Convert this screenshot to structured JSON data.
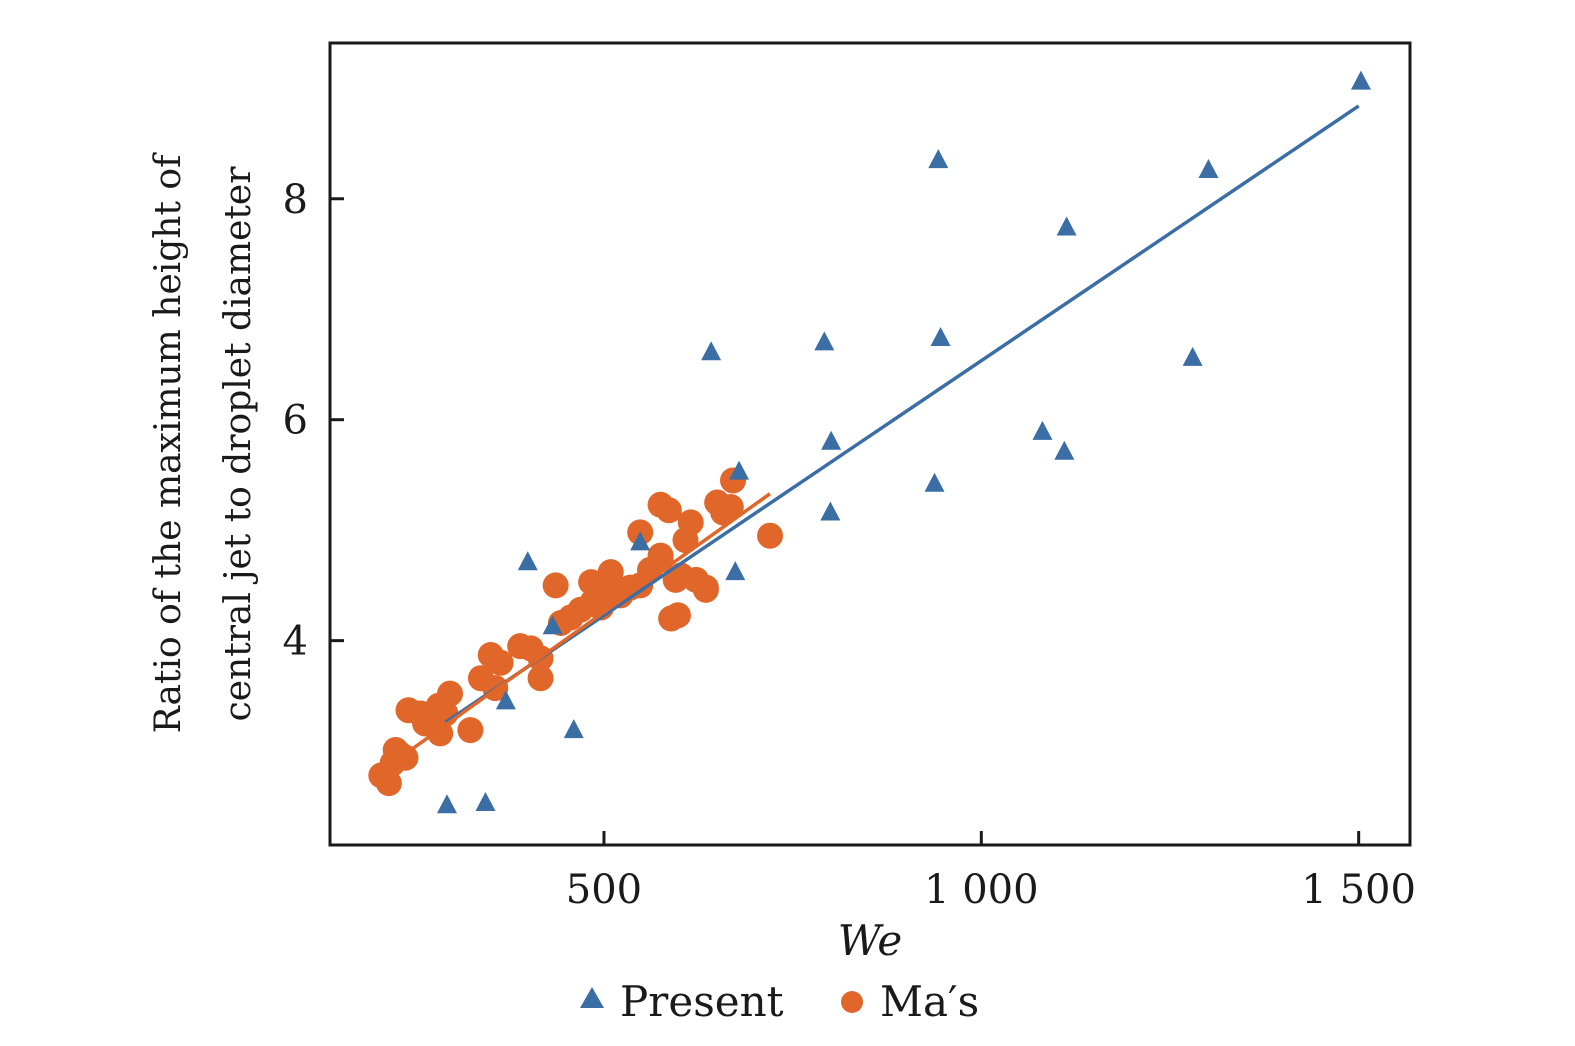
{
  "chart_data": {
    "type": "scatter",
    "title": "",
    "xlabel": "We",
    "ylabel": [
      "Ratio of the maximum height of",
      "central jet to droplet diameter"
    ],
    "xlim": [
      137,
      1568
    ],
    "ylim": [
      2.15,
      9.41
    ],
    "xticks": [
      500,
      1000,
      1500
    ],
    "xtick_labels": [
      "500",
      "1 000",
      "1 500"
    ],
    "yticks": [
      4,
      6,
      8
    ],
    "ytick_labels": [
      "4",
      "6",
      "8"
    ],
    "grid": false,
    "legend": {
      "placement": "bottom-center",
      "entries": [
        "Present",
        "Ma′s"
      ]
    },
    "series": [
      {
        "name": "Present",
        "marker": "triangle",
        "color": "#3a6ea5",
        "points": [
          [
            1503,
            9.06
          ],
          [
            943,
            8.35
          ],
          [
            1301,
            8.26
          ],
          [
            1113,
            7.74
          ],
          [
            642,
            6.61
          ],
          [
            792,
            6.7
          ],
          [
            946,
            6.74
          ],
          [
            1280,
            6.56
          ],
          [
            1081,
            5.89
          ],
          [
            801,
            5.8
          ],
          [
            1110,
            5.71
          ],
          [
            938,
            5.42
          ],
          [
            800,
            5.16
          ],
          [
            679,
            5.53
          ],
          [
            674,
            4.62
          ],
          [
            548,
            4.89
          ],
          [
            399,
            4.71
          ],
          [
            432,
            4.13
          ],
          [
            370,
            3.45
          ],
          [
            460,
            3.19
          ],
          [
            292,
            2.51
          ],
          [
            343,
            2.53
          ]
        ],
        "fit_line": [
          [
            290,
            3.26
          ],
          [
            1500,
            8.84
          ]
        ]
      },
      {
        "name": "Ma′s",
        "marker": "circle",
        "color": "#e0662a",
        "points": [
          [
            205,
            2.78
          ],
          [
            215,
            2.71
          ],
          [
            220,
            2.89
          ],
          [
            224,
            3.01
          ],
          [
            237,
            2.94
          ],
          [
            241,
            3.37
          ],
          [
            257,
            3.34
          ],
          [
            270,
            3.28
          ],
          [
            281,
            3.41
          ],
          [
            290,
            3.34
          ],
          [
            283,
            3.16
          ],
          [
            263,
            3.25
          ],
          [
            323,
            3.19
          ],
          [
            337,
            3.66
          ],
          [
            350,
            3.87
          ],
          [
            356,
            3.57
          ],
          [
            363,
            3.8
          ],
          [
            389,
            3.95
          ],
          [
            403,
            3.93
          ],
          [
            416,
            3.84
          ],
          [
            416,
            3.66
          ],
          [
            436,
            4.5
          ],
          [
            443,
            4.16
          ],
          [
            456,
            4.21
          ],
          [
            469,
            4.28
          ],
          [
            483,
            4.53
          ],
          [
            485,
            4.35
          ],
          [
            496,
            4.3
          ],
          [
            509,
            4.62
          ],
          [
            502,
            4.41
          ],
          [
            521,
            4.46
          ],
          [
            535,
            4.48
          ],
          [
            548,
            4.98
          ],
          [
            548,
            4.5
          ],
          [
            561,
            4.64
          ],
          [
            575,
            4.73
          ],
          [
            575,
            5.23
          ],
          [
            586,
            5.18
          ],
          [
            589,
            4.2
          ],
          [
            595,
            4.55
          ],
          [
            602,
            4.59
          ],
          [
            608,
            4.91
          ],
          [
            615,
            5.07
          ],
          [
            622,
            4.55
          ],
          [
            635,
            4.48
          ],
          [
            650,
            5.25
          ],
          [
            658,
            5.16
          ],
          [
            668,
            5.21
          ],
          [
            671,
            5.45
          ],
          [
            635,
            4.46
          ],
          [
            598,
            4.23
          ],
          [
            720,
            4.95
          ],
          [
            575,
            4.77
          ],
          [
            522,
            4.41
          ],
          [
            296,
            3.52
          ],
          [
            230,
            2.97
          ]
        ],
        "fit_line": [
          [
            205,
            2.82
          ],
          [
            720,
            5.33
          ]
        ]
      }
    ]
  }
}
